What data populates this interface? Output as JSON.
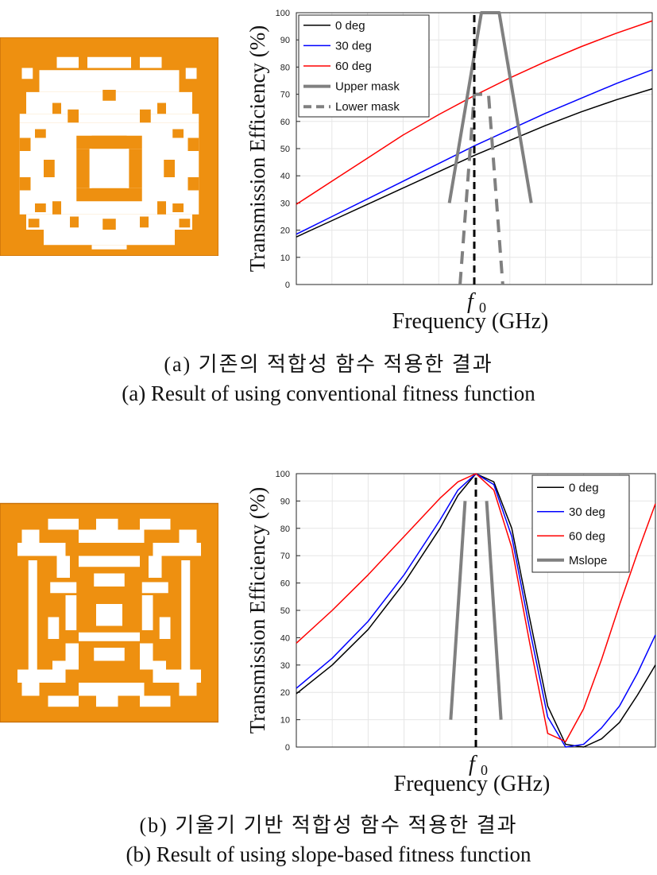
{
  "colors": {
    "pattern_orange": "#ee9010",
    "pattern_border": "#c8700a",
    "black_curve": "#000000",
    "blue_curve": "#0000ff",
    "red_curve": "#ff0000",
    "mask_gray": "#808080"
  },
  "panels": [
    {
      "caption_ko": "(a) 기존의 적합성 함수 적용한 결과",
      "caption_en": "(a) Result of using conventional fitness function"
    },
    {
      "caption_ko": "(b) 기울기 기반 적합성 함수 적용한 결과",
      "caption_en": "(b) Result of using slope-based fitness function"
    }
  ],
  "chart_data": [
    {
      "type": "line",
      "xlabel": "Frequency (GHz)",
      "ylabel": "Transmission Efficiency (%)",
      "f0_label": "f",
      "f0_sub": "0",
      "x_range": [
        0,
        1
      ],
      "x_note_f0": 0.5,
      "ylim": [
        0,
        100
      ],
      "yticks": [
        0,
        10,
        20,
        30,
        40,
        50,
        60,
        70,
        80,
        90,
        100
      ],
      "grid": true,
      "legend_position": "top-left",
      "legend": [
        "0 deg",
        "30 deg",
        "60 deg",
        "Upper mask",
        "Lower mask"
      ],
      "series": [
        {
          "name": "0 deg",
          "color": "#000000",
          "dash": "solid",
          "x": [
            0,
            0.1,
            0.2,
            0.3,
            0.4,
            0.5,
            0.6,
            0.7,
            0.8,
            0.9,
            1.0
          ],
          "y": [
            17.5,
            23.5,
            29.5,
            35.5,
            41.5,
            47.5,
            53.0,
            58.5,
            63.5,
            68.0,
            72.0
          ]
        },
        {
          "name": "30 deg",
          "color": "#0000ff",
          "dash": "solid",
          "x": [
            0,
            0.1,
            0.2,
            0.3,
            0.4,
            0.5,
            0.6,
            0.7,
            0.8,
            0.9,
            1.0
          ],
          "y": [
            18.5,
            25.0,
            31.5,
            38.0,
            44.5,
            51.0,
            57.0,
            63.0,
            68.5,
            74.0,
            79.0
          ]
        },
        {
          "name": "60 deg",
          "color": "#ff0000",
          "dash": "solid",
          "x": [
            0,
            0.1,
            0.2,
            0.3,
            0.4,
            0.5,
            0.6,
            0.7,
            0.8,
            0.9,
            1.0
          ],
          "y": [
            29.5,
            38.0,
            46.5,
            55.0,
            62.5,
            69.5,
            76.0,
            82.0,
            87.5,
            92.5,
            97.0
          ]
        },
        {
          "name": "Upper mask",
          "color": "#808080",
          "dash": "solid",
          "width": 4,
          "x": [
            0.43,
            0.52,
            0.57,
            0.66
          ],
          "y": [
            30,
            100,
            100,
            30
          ]
        },
        {
          "name": "Lower mask",
          "color": "#808080",
          "dash": "dashed",
          "width": 4,
          "x": [
            0.46,
            0.5,
            0.54,
            0.58
          ],
          "y": [
            0,
            70,
            70,
            0
          ]
        }
      ],
      "f0_marker": {
        "x": 0.5,
        "y_from": 0,
        "y_to": 100,
        "dash": "dashed",
        "color": "#000000"
      }
    },
    {
      "type": "line",
      "xlabel": "Frequency (GHz)",
      "ylabel": "Transmission Efficiency (%)",
      "f0_label": "f",
      "f0_sub": "0",
      "x_range": [
        0,
        1
      ],
      "ylim": [
        0,
        100
      ],
      "yticks": [
        0,
        10,
        20,
        30,
        40,
        50,
        60,
        70,
        80,
        90,
        100
      ],
      "grid": true,
      "legend_position": "top-right",
      "legend": [
        "0 deg",
        "30 deg",
        "60 deg",
        "Mslope"
      ],
      "series": [
        {
          "name": "0 deg",
          "color": "#000000",
          "dash": "solid",
          "x": [
            0,
            0.1,
            0.2,
            0.3,
            0.4,
            0.45,
            0.5,
            0.55,
            0.6,
            0.65,
            0.7,
            0.75,
            0.8,
            0.85,
            0.9,
            0.95,
            1.0
          ],
          "y": [
            19.5,
            30,
            43,
            60,
            80,
            92,
            100,
            97,
            80,
            47,
            15,
            1,
            0,
            3,
            9,
            19,
            30
          ]
        },
        {
          "name": "30 deg",
          "color": "#0000ff",
          "dash": "solid",
          "x": [
            0,
            0.1,
            0.2,
            0.3,
            0.4,
            0.45,
            0.5,
            0.55,
            0.6,
            0.65,
            0.7,
            0.75,
            0.8,
            0.85,
            0.9,
            0.95,
            1.0
          ],
          "y": [
            21.5,
            32.5,
            46,
            63,
            83,
            94,
            100,
            96,
            77,
            43,
            11,
            0,
            1,
            7,
            15,
            27,
            41
          ]
        },
        {
          "name": "60 deg",
          "color": "#ff0000",
          "dash": "solid",
          "x": [
            0,
            0.1,
            0.2,
            0.3,
            0.4,
            0.45,
            0.5,
            0.55,
            0.6,
            0.65,
            0.7,
            0.75,
            0.8,
            0.85,
            0.9,
            0.95,
            1.0
          ],
          "y": [
            38,
            50,
            63,
            77,
            91,
            97,
            100,
            94,
            73,
            38,
            5,
            2,
            14,
            32,
            52,
            71,
            89
          ]
        },
        {
          "name": "Mslope",
          "color": "#808080",
          "dash": "solid",
          "width": 4,
          "x": [
            0.43,
            0.47
          ],
          "y": [
            10,
            90
          ]
        }
      ],
      "mslope_right": {
        "x": [
          0.53,
          0.57
        ],
        "y": [
          90,
          10
        ]
      },
      "f0_marker": {
        "x": 0.5,
        "y_from": 0,
        "y_to": 100,
        "dash": "dashed",
        "color": "#000000"
      }
    }
  ]
}
